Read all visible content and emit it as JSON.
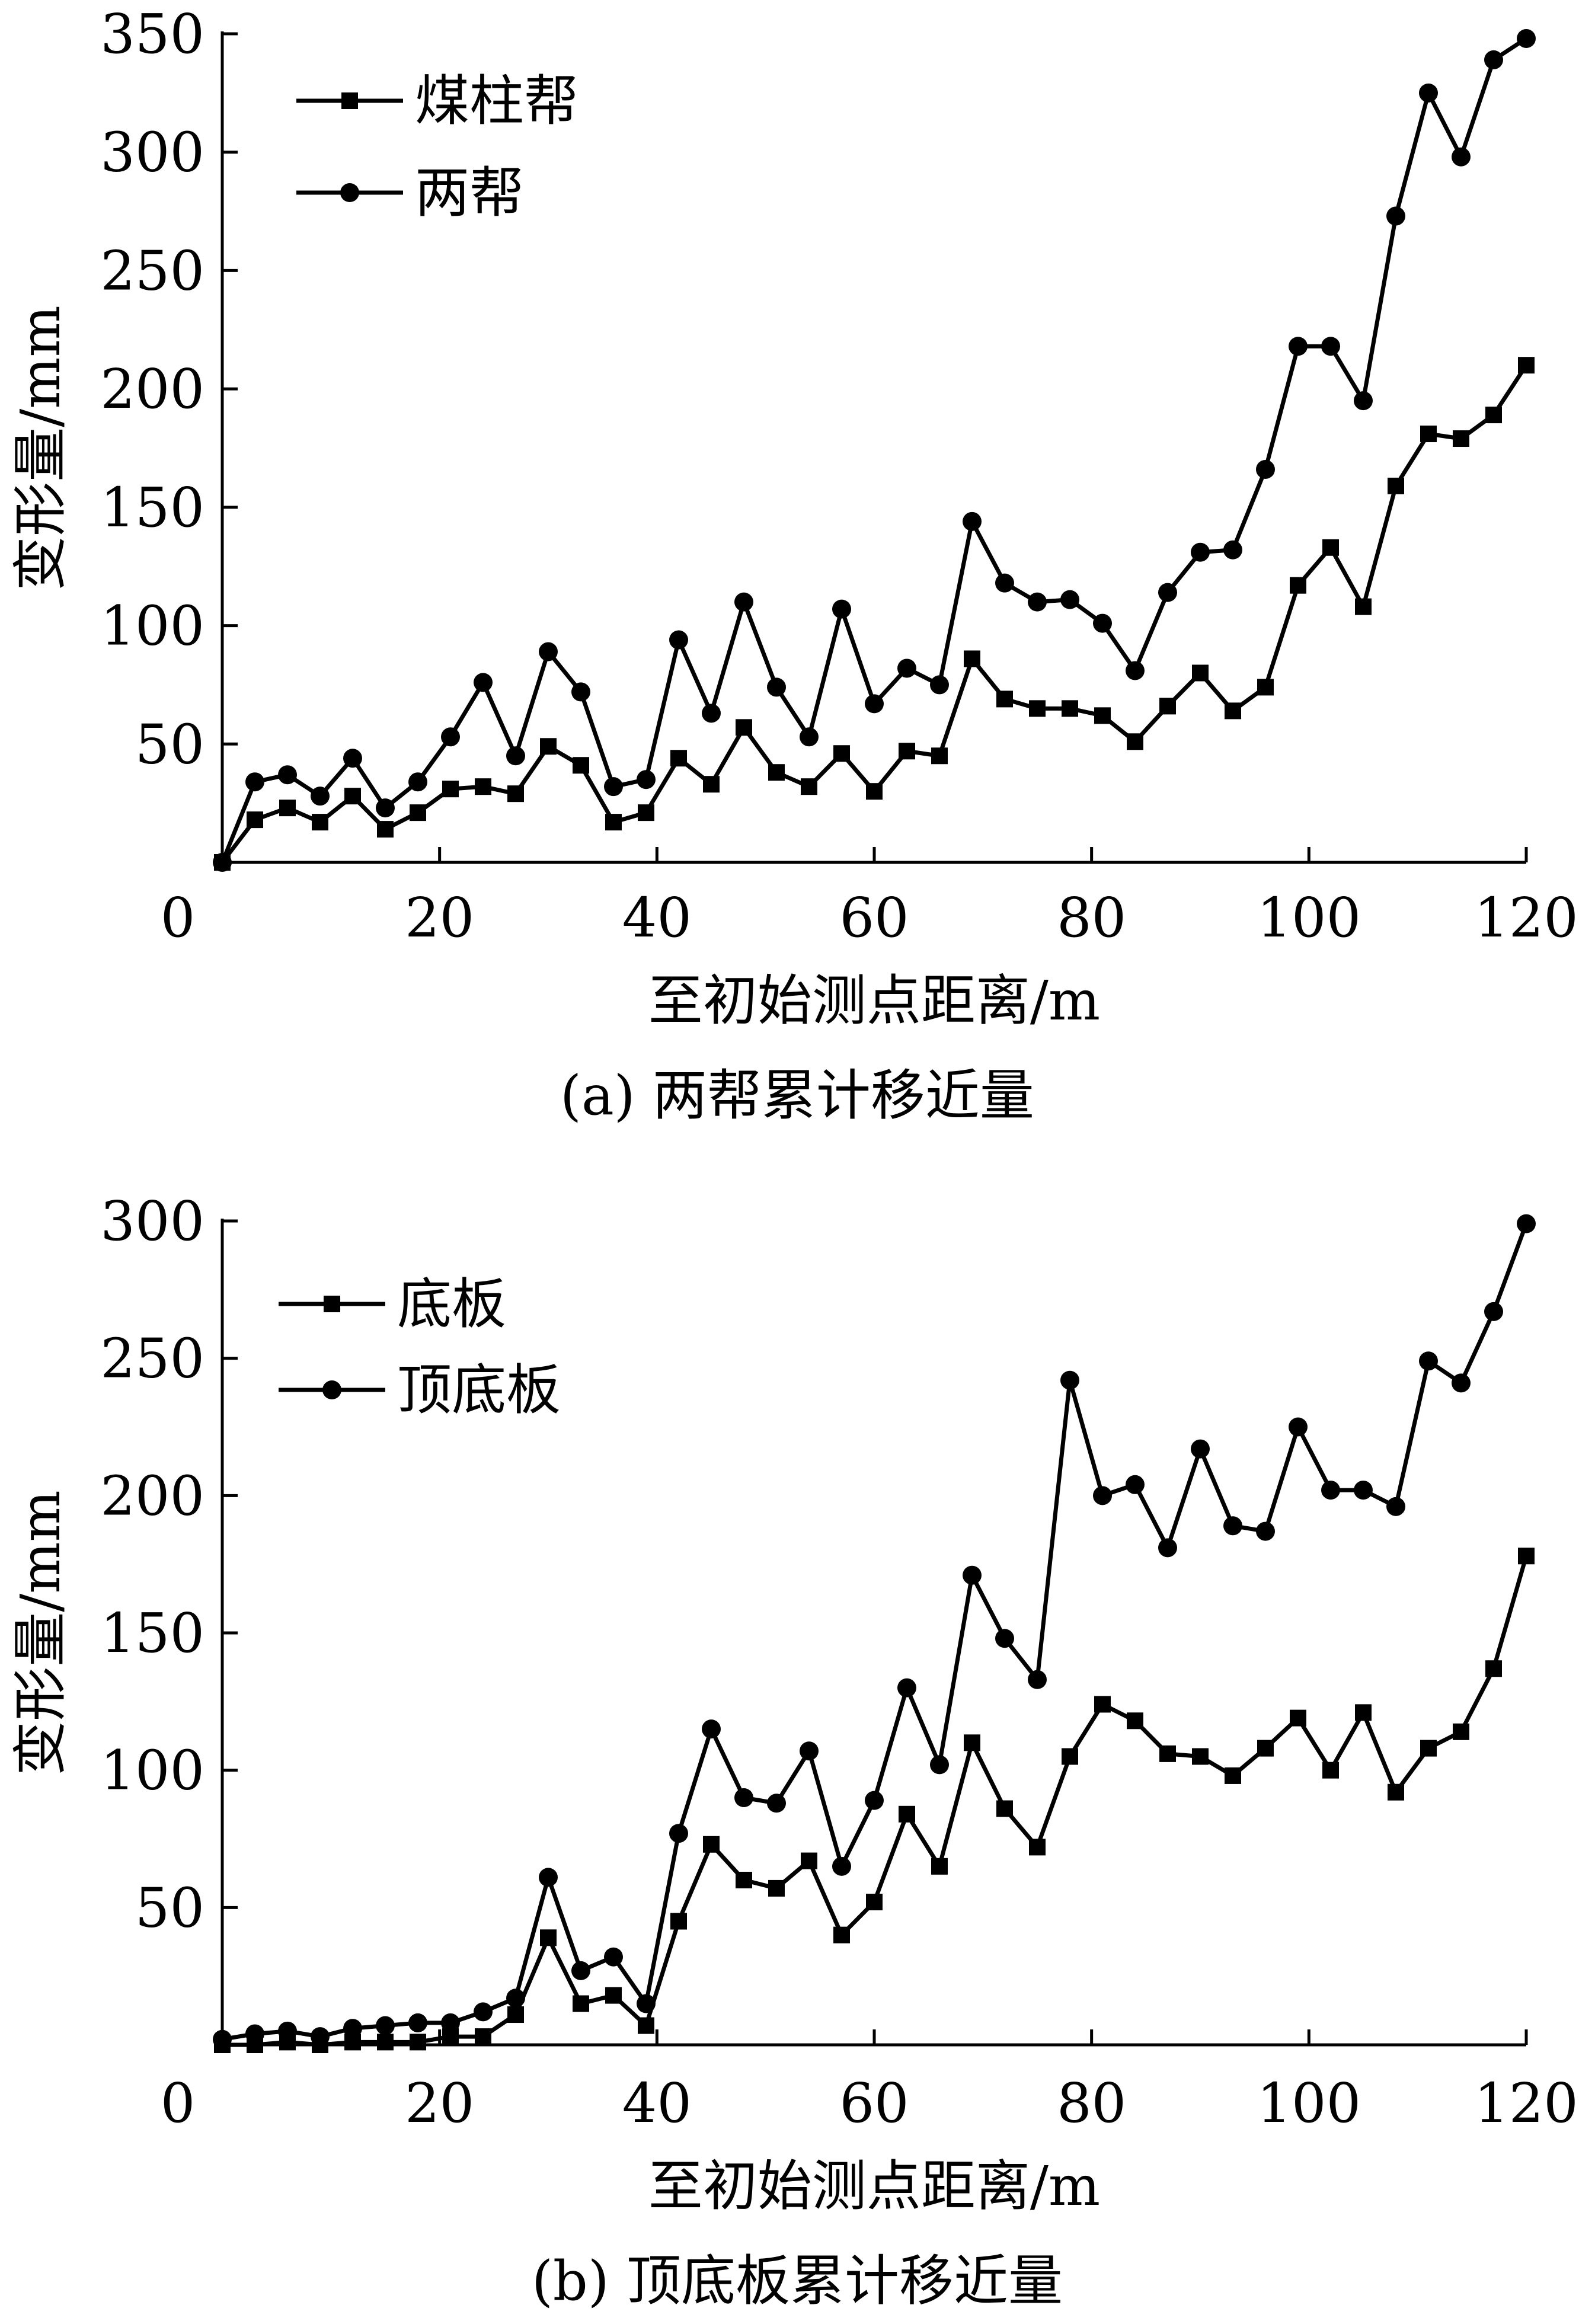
{
  "chart_data": [
    {
      "id": "a",
      "type": "line",
      "caption": "(a)  两帮累计移近量",
      "xlabel": "至初始测点距离/m",
      "ylabel": "变形量/mm",
      "xlim": [
        0,
        120
      ],
      "ylim": [
        0,
        350
      ],
      "xticks": [
        0,
        20,
        40,
        60,
        80,
        100,
        120
      ],
      "yticks": [
        50,
        100,
        150,
        200,
        250,
        300,
        350
      ],
      "grid": false,
      "legend_position": "top-left",
      "x": [
        0,
        3,
        6,
        9,
        12,
        15,
        18,
        21,
        24,
        27,
        30,
        33,
        36,
        39,
        42,
        45,
        48,
        51,
        54,
        57,
        60,
        63,
        66,
        69,
        72,
        75,
        78,
        81,
        84,
        87,
        90,
        93,
        96,
        99,
        102,
        105,
        108,
        111,
        114,
        117,
        120
      ],
      "series": [
        {
          "name": "煤柱帮",
          "marker": "square",
          "values": [
            0,
            18,
            23,
            17,
            28,
            14,
            21,
            31,
            32,
            29,
            49,
            41,
            17,
            21,
            44,
            33,
            57,
            38,
            32,
            46,
            30,
            47,
            45,
            86,
            69,
            65,
            65,
            62,
            51,
            66,
            80,
            64,
            74,
            117,
            133,
            108,
            159,
            181,
            179,
            189,
            210
          ]
        },
        {
          "name": "两帮",
          "marker": "circle",
          "values": [
            0,
            34,
            37,
            28,
            44,
            23,
            34,
            53,
            76,
            45,
            89,
            72,
            32,
            35,
            94,
            63,
            110,
            74,
            53,
            107,
            67,
            82,
            75,
            144,
            118,
            110,
            111,
            101,
            81,
            114,
            131,
            132,
            166,
            218,
            218,
            195,
            273,
            325,
            298,
            339,
            348
          ]
        }
      ]
    },
    {
      "id": "b",
      "type": "line",
      "caption": "(b)  顶底板累计移近量",
      "xlabel": "至初始测点距离/m",
      "ylabel": "变形量/mm",
      "xlim": [
        0,
        120
      ],
      "ylim": [
        0,
        300
      ],
      "xticks": [
        0,
        20,
        40,
        60,
        80,
        100,
        120
      ],
      "yticks": [
        50,
        100,
        150,
        200,
        250,
        300
      ],
      "grid": false,
      "legend_position": "top-left",
      "x": [
        0,
        3,
        6,
        9,
        12,
        15,
        18,
        21,
        24,
        27,
        30,
        33,
        36,
        39,
        42,
        45,
        48,
        51,
        54,
        57,
        60,
        63,
        66,
        69,
        72,
        75,
        78,
        81,
        84,
        87,
        90,
        93,
        96,
        99,
        102,
        105,
        108,
        111,
        114,
        117,
        120
      ],
      "series": [
        {
          "name": "底板",
          "marker": "square",
          "values": [
            0,
            0,
            1,
            0,
            1,
            1,
            1,
            3,
            3,
            11,
            39,
            15,
            18,
            7,
            45,
            73,
            60,
            57,
            67,
            40,
            52,
            84,
            65,
            110,
            86,
            72,
            105,
            124,
            118,
            106,
            105,
            98,
            108,
            119,
            100,
            121,
            92,
            108,
            114,
            137,
            178
          ]
        },
        {
          "name": "顶底板",
          "marker": "circle",
          "values": [
            2,
            4,
            5,
            3,
            6,
            7,
            8,
            8,
            12,
            17,
            61,
            27,
            32,
            15,
            77,
            115,
            90,
            88,
            107,
            65,
            89,
            130,
            102,
            171,
            148,
            133,
            242,
            200,
            204,
            181,
            217,
            189,
            187,
            225,
            202,
            202,
            196,
            249,
            241,
            267,
            299
          ]
        }
      ]
    }
  ]
}
